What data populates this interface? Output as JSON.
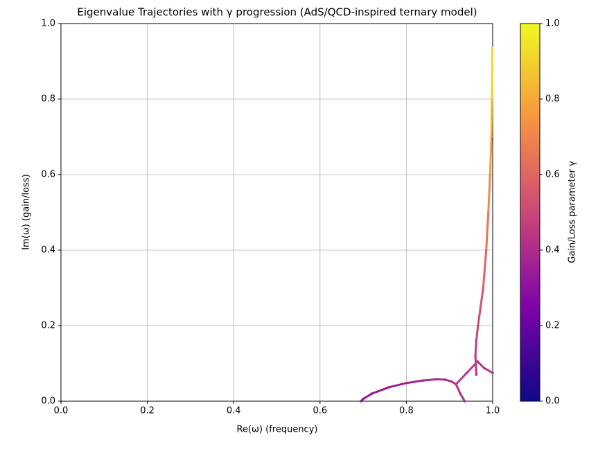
{
  "chart_data": {
    "type": "trajectory",
    "title": "Eigenvalue Trajectories with γ progression (AdS/QCD-inspired ternary model)",
    "x_label": "Re(ω)  (frequency)",
    "y_label": "Im(ω)  (gain/loss)",
    "xlim": [
      0,
      1
    ],
    "ylim": [
      0,
      1
    ],
    "xticks": [
      {
        "value": 0,
        "label": "0.0"
      },
      0.2,
      0.4,
      0.6,
      0.8,
      {
        "value": 1,
        "label": "1.0"
      }
    ],
    "yticks": [
      {
        "value": 0,
        "label": "0.0"
      },
      0.2,
      0.4,
      0.6,
      0.8,
      {
        "value": 1,
        "label": "1.0"
      }
    ],
    "grid": true,
    "colormap": "plasma",
    "colorbar": {
      "label": "Gain/Loss parameter γ",
      "lim": [
        0,
        1
      ],
      "ticks": [
        {
          "value": 0,
          "label": "0.0"
        },
        0.2,
        0.4,
        0.6,
        0.8,
        {
          "value": 1,
          "label": "1.0"
        }
      ]
    },
    "series": [
      {
        "x": [
          0.695,
          0.7,
          0.72,
          0.76,
          0.8,
          0.84,
          0.87,
          0.89,
          0.905,
          0.915
        ],
        "y": [
          0.0,
          0.006,
          0.02,
          0.037,
          0.048,
          0.055,
          0.058,
          0.057,
          0.052,
          0.045
        ],
        "gamma": [
          0.3,
          0.31,
          0.32,
          0.34,
          0.36,
          0.38,
          0.39,
          0.4,
          0.41,
          0.42
        ]
      },
      {
        "x": [
          0.915,
          0.94,
          0.965
        ],
        "y": [
          0.045,
          0.075,
          0.105
        ],
        "gamma": [
          0.42,
          0.43,
          0.44
        ]
      },
      {
        "x": [
          0.915,
          0.925,
          0.935
        ],
        "y": [
          0.045,
          0.02,
          0.0
        ],
        "gamma": [
          0.42,
          0.41,
          0.4
        ]
      },
      {
        "x": [
          0.965,
          0.98,
          1.0
        ],
        "y": [
          0.105,
          0.088,
          0.075
        ],
        "gamma": [
          0.44,
          0.43,
          0.42
        ]
      },
      {
        "x": [
          0.962,
          0.96,
          0.962,
          0.966,
          0.972,
          0.978,
          0.985,
          0.99,
          0.994,
          0.997,
          0.998,
          0.999
        ],
        "y": [
          0.07,
          0.12,
          0.16,
          0.2,
          0.25,
          0.3,
          0.4,
          0.5,
          0.6,
          0.7,
          0.8,
          0.935
        ],
        "gamma": [
          0.44,
          0.46,
          0.48,
          0.5,
          0.53,
          0.56,
          0.62,
          0.68,
          0.74,
          0.8,
          0.87,
          0.95
        ]
      }
    ]
  }
}
